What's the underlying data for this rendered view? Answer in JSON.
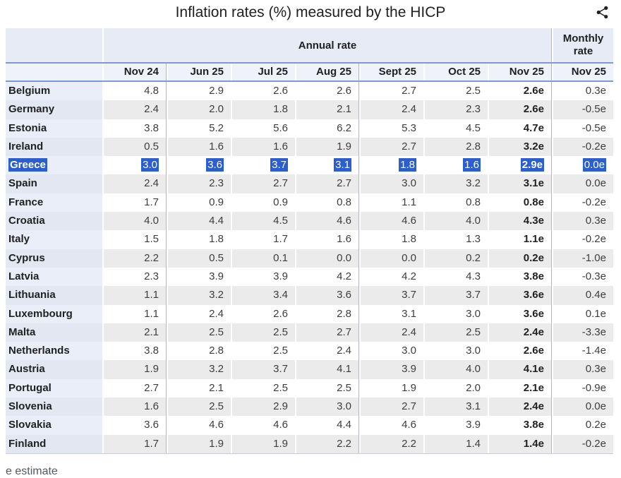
{
  "header": {
    "title": "Inflation rates (%) measured by the HICP",
    "share_icon": "share-icon"
  },
  "colors": {
    "selection_highlight": "#2c5ecd",
    "header_rule_blue": "#7e99d3",
    "group_header_bg": "#e7ebf5",
    "column_header_bg": "#eff2f9",
    "stripe_gray": "#ebebeb",
    "name_column_tint": "#e9eef9"
  },
  "footer": {
    "note": "e estimate"
  },
  "chart_data": {
    "type": "table",
    "title": "Inflation rates (%) measured by the HICP",
    "note": "e estimate",
    "highlighted_row": "Greece",
    "column_groups": [
      {
        "label": "Annual rate",
        "columns": [
          "Nov 24",
          "Jun 25",
          "Jul 25",
          "Aug 25",
          "Sept 25",
          "Oct 25",
          "Nov 25"
        ]
      },
      {
        "label": "Monthly rate",
        "columns": [
          "Nov 25"
        ]
      }
    ],
    "rows": [
      {
        "country": "Belgium",
        "annual": [
          "4.8",
          "2.9",
          "2.6",
          "2.6",
          "2.7",
          "2.5",
          "2.6e"
        ],
        "monthly": "0.3e",
        "selected": false
      },
      {
        "country": "Germany",
        "annual": [
          "2.4",
          "2.0",
          "1.8",
          "2.1",
          "2.4",
          "2.3",
          "2.6e"
        ],
        "monthly": "-0.5e",
        "selected": false
      },
      {
        "country": "Estonia",
        "annual": [
          "3.8",
          "5.2",
          "5.6",
          "6.2",
          "5.3",
          "4.5",
          "4.7e"
        ],
        "monthly": "-0.5e",
        "selected": false
      },
      {
        "country": "Ireland",
        "annual": [
          "0.5",
          "1.6",
          "1.6",
          "1.9",
          "2.7",
          "2.8",
          "3.2e"
        ],
        "monthly": "-0.2e",
        "selected": false
      },
      {
        "country": "Greece",
        "annual": [
          "3.0",
          "3.6",
          "3.7",
          "3.1",
          "1.8",
          "1.6",
          "2.9e"
        ],
        "monthly": "0.0e",
        "selected": true
      },
      {
        "country": "Spain",
        "annual": [
          "2.4",
          "2.3",
          "2.7",
          "2.7",
          "3.0",
          "3.2",
          "3.1e"
        ],
        "monthly": "0.0e",
        "selected": false
      },
      {
        "country": "France",
        "annual": [
          "1.7",
          "0.9",
          "0.9",
          "0.8",
          "1.1",
          "0.8",
          "0.8e"
        ],
        "monthly": "-0.2e",
        "selected": false
      },
      {
        "country": "Croatia",
        "annual": [
          "4.0",
          "4.4",
          "4.5",
          "4.6",
          "4.6",
          "4.0",
          "4.3e"
        ],
        "monthly": "0.3e",
        "selected": false
      },
      {
        "country": "Italy",
        "annual": [
          "1.5",
          "1.8",
          "1.7",
          "1.6",
          "1.8",
          "1.3",
          "1.1e"
        ],
        "monthly": "-0.2e",
        "selected": false
      },
      {
        "country": "Cyprus",
        "annual": [
          "2.2",
          "0.5",
          "0.1",
          "0.0",
          "0.0",
          "0.2",
          "0.2e"
        ],
        "monthly": "-1.0e",
        "selected": false
      },
      {
        "country": "Latvia",
        "annual": [
          "2.3",
          "3.9",
          "3.9",
          "4.2",
          "4.2",
          "4.3",
          "3.8e"
        ],
        "monthly": "-0.3e",
        "selected": false
      },
      {
        "country": "Lithuania",
        "annual": [
          "1.1",
          "3.2",
          "3.4",
          "3.6",
          "3.7",
          "3.7",
          "3.6e"
        ],
        "monthly": "0.4e",
        "selected": false
      },
      {
        "country": "Luxembourg",
        "annual": [
          "1.1",
          "2.4",
          "2.6",
          "2.8",
          "3.1",
          "3.0",
          "3.6e"
        ],
        "monthly": "0.1e",
        "selected": false
      },
      {
        "country": "Malta",
        "annual": [
          "2.1",
          "2.5",
          "2.5",
          "2.7",
          "2.4",
          "2.5",
          "2.4e"
        ],
        "monthly": "-3.3e",
        "selected": false
      },
      {
        "country": "Netherlands",
        "annual": [
          "3.8",
          "2.8",
          "2.5",
          "2.4",
          "3.0",
          "3.0",
          "2.6e"
        ],
        "monthly": "-1.4e",
        "selected": false
      },
      {
        "country": "Austria",
        "annual": [
          "1.9",
          "3.2",
          "3.7",
          "4.1",
          "3.9",
          "4.0",
          "4.1e"
        ],
        "monthly": "0.3e",
        "selected": false
      },
      {
        "country": "Portugal",
        "annual": [
          "2.7",
          "2.1",
          "2.5",
          "2.5",
          "1.9",
          "2.0",
          "2.1e"
        ],
        "monthly": "-0.9e",
        "selected": false
      },
      {
        "country": "Slovenia",
        "annual": [
          "1.6",
          "2.5",
          "2.9",
          "3.0",
          "2.7",
          "3.1",
          "2.4e"
        ],
        "monthly": "0.0e",
        "selected": false
      },
      {
        "country": "Slovakia",
        "annual": [
          "3.6",
          "4.6",
          "4.6",
          "4.4",
          "4.6",
          "3.9",
          "3.8e"
        ],
        "monthly": "0.2e",
        "selected": false
      },
      {
        "country": "Finland",
        "annual": [
          "1.7",
          "1.9",
          "1.9",
          "2.2",
          "2.2",
          "1.4",
          "1.4e"
        ],
        "monthly": "-0.2e",
        "selected": false
      }
    ]
  }
}
